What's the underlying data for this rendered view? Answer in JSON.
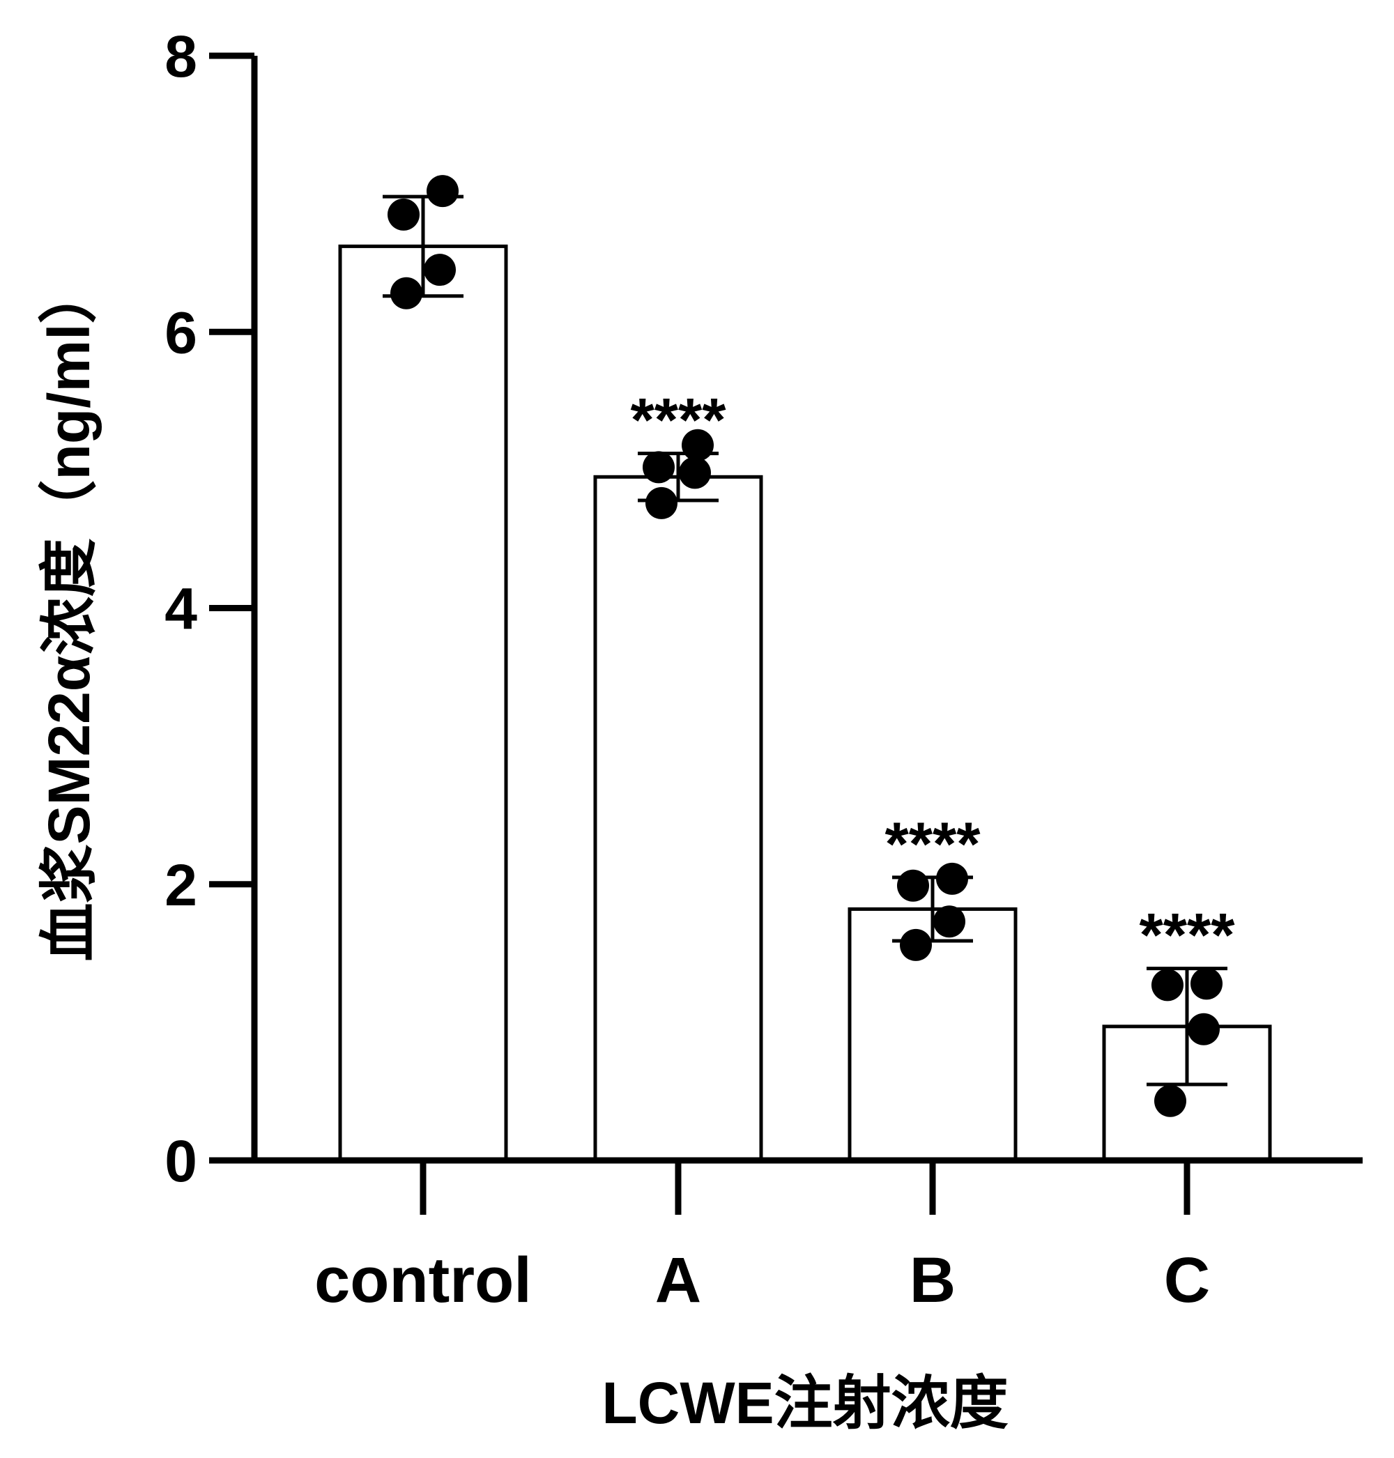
{
  "chart_data": {
    "type": "bar",
    "xlabel": "LCWE注射浓度",
    "ylabel": "血浆SM22α浓度（ng/ml）",
    "ylim": [
      0,
      8
    ],
    "yticks": [
      0,
      2,
      4,
      6,
      8
    ],
    "ytick_labels": [
      "0",
      "2",
      "4",
      "6",
      "8"
    ],
    "grid": false,
    "categories": [
      "control",
      "A",
      "B",
      "C"
    ],
    "values": [
      6.62,
      4.95,
      1.82,
      0.97
    ],
    "error": [
      0.36,
      0.17,
      0.23,
      0.42
    ],
    "points": [
      [
        7.02,
        6.85,
        6.45,
        6.28
      ],
      [
        5.18,
        5.02,
        4.98,
        4.76
      ],
      [
        2.04,
        1.99,
        1.73,
        1.56
      ],
      [
        1.28,
        1.27,
        0.95,
        0.43
      ]
    ],
    "significance": [
      "",
      "****",
      "****",
      "****"
    ],
    "colors": {
      "bar_fill": "#ffffff",
      "stroke": "#000000",
      "points": "#000000"
    }
  }
}
